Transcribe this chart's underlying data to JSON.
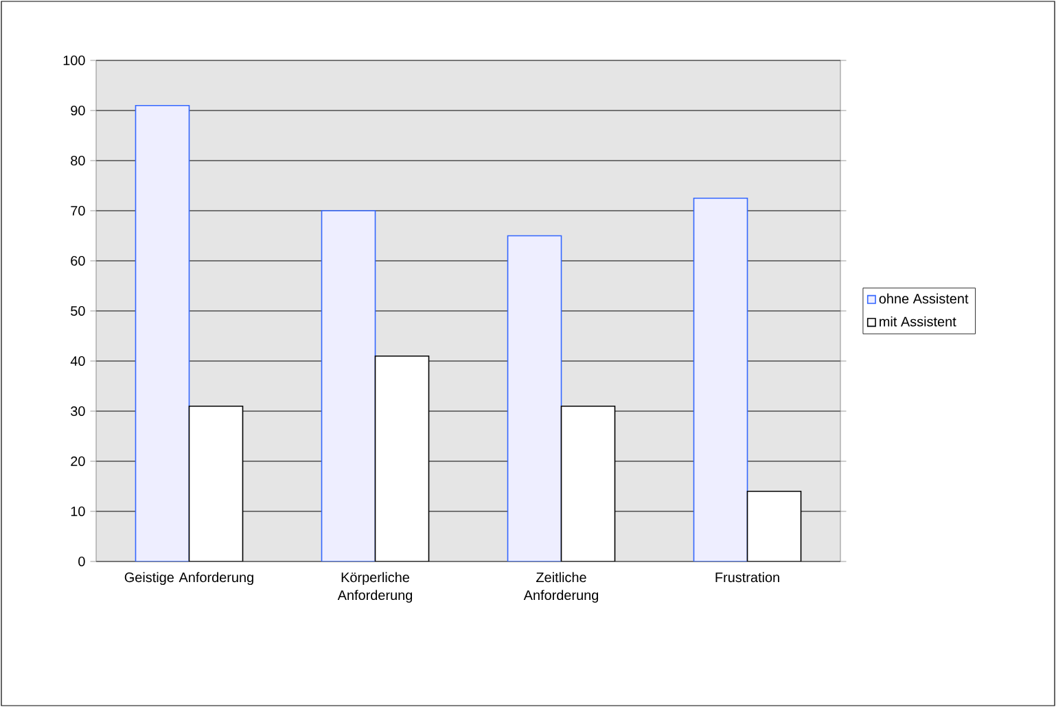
{
  "chart_data": {
    "type": "bar",
    "categories": [
      "Geistige Anforderung",
      "Körperliche Anforderung",
      "Zeitliche Anforderung",
      "Frustration"
    ],
    "series": [
      {
        "name": "ohne Assistent",
        "color": "#eeeeff",
        "values": [
          91,
          70,
          65,
          72.5
        ]
      },
      {
        "name": "mit Assistent",
        "color": "#ffffff",
        "values": [
          31,
          41,
          31,
          14
        ]
      }
    ],
    "ylim": [
      0,
      100
    ],
    "yticks": [
      0,
      10,
      20,
      30,
      40,
      50,
      60,
      70,
      80,
      90,
      100
    ],
    "grid": "y",
    "legend": "right"
  }
}
